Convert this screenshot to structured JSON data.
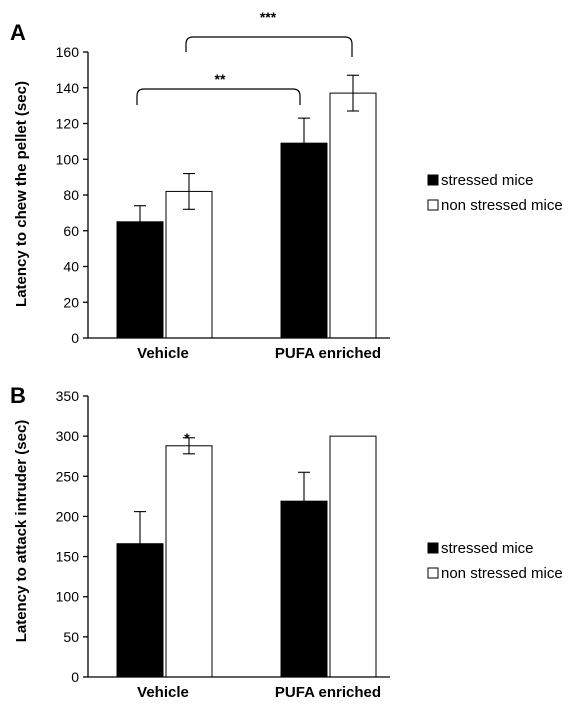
{
  "chart_data": [
    {
      "panel": "A",
      "type": "bar",
      "title": "",
      "xlabel": "",
      "ylabel": "Latency to chew the pellet (sec)",
      "categories": [
        "Vehicle",
        "PUFA enriched"
      ],
      "ylim": [
        0,
        160
      ],
      "yticks": [
        0,
        20,
        40,
        60,
        80,
        100,
        120,
        140,
        160
      ],
      "series": [
        {
          "name": "stressed mice",
          "color": "#000000",
          "values": [
            65,
            109
          ],
          "errors": [
            9,
            14
          ]
        },
        {
          "name": "non stressed mice",
          "color": "#ffffff",
          "values": [
            82,
            137
          ],
          "errors": [
            10,
            10
          ]
        }
      ],
      "annotations": [
        {
          "text": "**",
          "from": "Vehicle:stressed mice",
          "to": "PUFA enriched:stressed mice"
        },
        {
          "text": "***",
          "from": "Vehicle:non stressed mice",
          "to": "PUFA enriched:non stressed mice"
        }
      ],
      "grid": false,
      "legend": "right"
    },
    {
      "panel": "B",
      "type": "bar",
      "title": "",
      "xlabel": "",
      "ylabel": "Latency to attack intruder (sec)",
      "categories": [
        "Vehicle",
        "PUFA enriched"
      ],
      "ylim": [
        0,
        350
      ],
      "yticks": [
        0,
        50,
        100,
        150,
        200,
        250,
        300,
        350
      ],
      "series": [
        {
          "name": "stressed mice",
          "color": "#000000",
          "values": [
            166,
            219
          ],
          "errors": [
            40,
            36
          ]
        },
        {
          "name": "non stressed mice",
          "color": "#ffffff",
          "values": [
            288,
            300
          ],
          "errors": [
            10,
            0
          ]
        }
      ],
      "annotations": [
        {
          "text": "*",
          "above": "Vehicle:non stressed mice"
        }
      ],
      "grid": false,
      "legend": "right"
    }
  ]
}
